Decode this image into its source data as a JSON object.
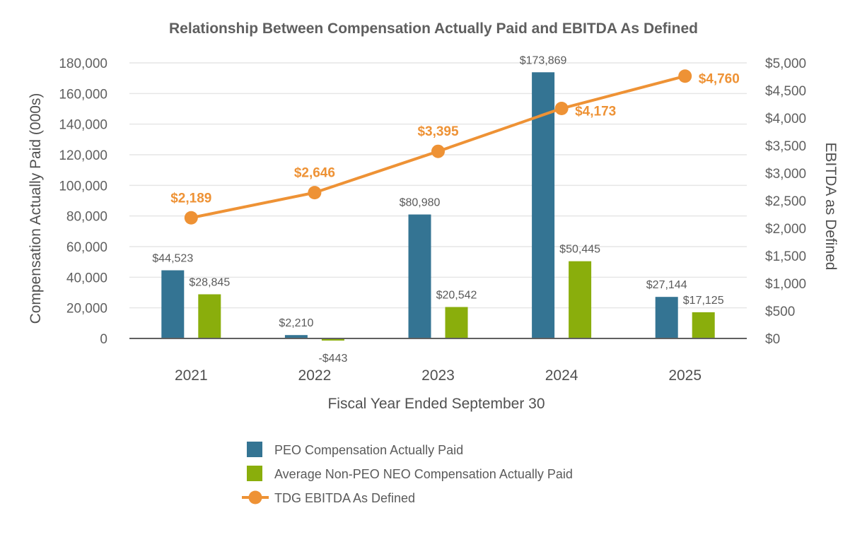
{
  "colors": {
    "peo": "#347493",
    "neo": "#8aae0c",
    "ebitda": "#ee9235",
    "grid": "#e6e6e6",
    "baseline": "#606060"
  },
  "chart_data": {
    "type": "bar",
    "title": "Relationship Between Compensation Actually Paid and EBITDA As Defined",
    "xlabel": "Fiscal Year Ended September 30",
    "ylabel": "Compensation Actually Paid (000s)",
    "y2label": "EBITDA as Defined",
    "categories": [
      "2021",
      "2022",
      "2023",
      "2024",
      "2025"
    ],
    "ylim": [
      0,
      180000
    ],
    "yticks": [
      "0",
      "20,000",
      "40,000",
      "60,000",
      "80,000",
      "100,000",
      "120,000",
      "140,000",
      "160,000",
      "180,000"
    ],
    "y2lim": [
      0,
      5000
    ],
    "y2ticks": [
      "$0",
      "$500",
      "$1,000",
      "$1,500",
      "$2,000",
      "$2,500",
      "$3,000",
      "$3,500",
      "$4,000",
      "$4,500",
      "$5,000"
    ],
    "grid": true,
    "legend_position": "bottom",
    "series": [
      {
        "name": "PEO Compensation Actually Paid",
        "kind": "bar",
        "axis": "left",
        "values": [
          44523,
          2210,
          80980,
          173869,
          27144
        ],
        "labels": [
          "$44,523",
          "$2,210",
          "$80,980",
          "$173,869",
          "$27,144"
        ]
      },
      {
        "name": "Average Non-PEO NEO Compensation Actually Paid",
        "kind": "bar",
        "axis": "left",
        "values": [
          28845,
          -443,
          20542,
          50445,
          17125
        ],
        "labels": [
          "$28,845",
          "-$443",
          "$20,542",
          "$50,445",
          "$17,125"
        ]
      },
      {
        "name": "TDG EBITDA As Defined",
        "kind": "line",
        "axis": "right",
        "values": [
          2189,
          2646,
          3395,
          4173,
          4760
        ],
        "labels": [
          "$2,189",
          "$2,646",
          "$3,395",
          "$4,173",
          "$4,760"
        ]
      }
    ]
  }
}
